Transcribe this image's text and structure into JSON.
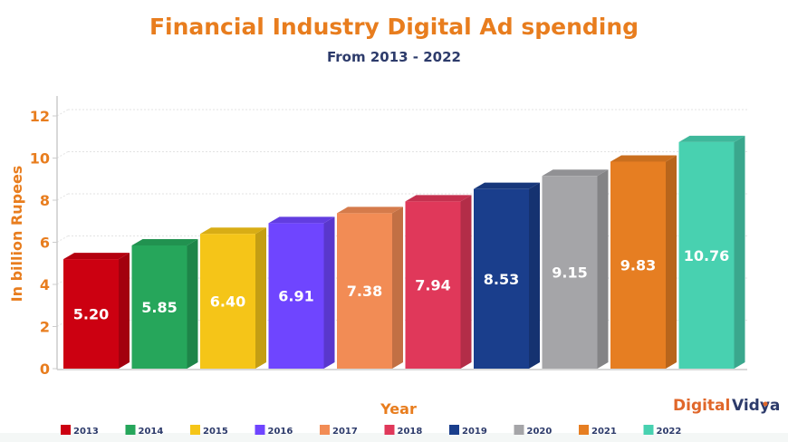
{
  "chart_data": {
    "type": "bar",
    "title": "Financial Industry Digital Ad spending",
    "subtitle": "From 2013 - 2022",
    "xlabel": "Year",
    "ylabel": "In billion Rupees",
    "ylim": [
      0,
      12
    ],
    "yticks": [
      0,
      2,
      4,
      6,
      8,
      10,
      12
    ],
    "grid": true,
    "legend_placement": "bottom",
    "style": "3d",
    "categories": [
      "2013",
      "2014",
      "2015",
      "2016",
      "2017",
      "2018",
      "2019",
      "2020",
      "2021",
      "2022"
    ],
    "values": [
      5.2,
      5.85,
      6.4,
      6.91,
      7.38,
      7.94,
      8.53,
      9.15,
      9.83,
      10.76
    ],
    "value_labels": [
      "5.20",
      "5.85",
      "6.40",
      "6.91",
      "7.38",
      "7.94",
      "8.53",
      "9.15",
      "9.83",
      "10.76"
    ],
    "colors": [
      "#cc0011",
      "#26a65b",
      "#f5c518",
      "#6f45ff",
      "#f28c55",
      "#e0385a",
      "#1a3e8c",
      "#a5a5a8",
      "#e67e22",
      "#48d1b0"
    ]
  },
  "logo": {
    "part1": "Digital",
    "part2": "Vidya"
  }
}
